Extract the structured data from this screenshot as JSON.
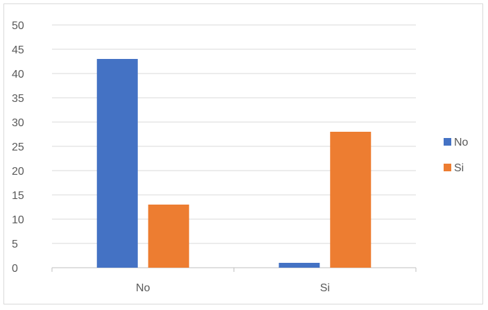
{
  "chart_data": {
    "type": "bar",
    "categories": [
      "No",
      "Si"
    ],
    "series": [
      {
        "name": "No",
        "values": [
          43,
          1
        ],
        "color": "#4472c4"
      },
      {
        "name": "Si",
        "values": [
          13,
          28
        ],
        "color": "#ed7d31"
      }
    ],
    "title": "",
    "xlabel": "",
    "ylabel": "",
    "ylim": [
      0,
      50
    ],
    "yticks": [
      "0",
      "5",
      "10",
      "15",
      "20",
      "25",
      "30",
      "35",
      "40",
      "45",
      "50"
    ],
    "grid": true,
    "legend_position": "right"
  }
}
